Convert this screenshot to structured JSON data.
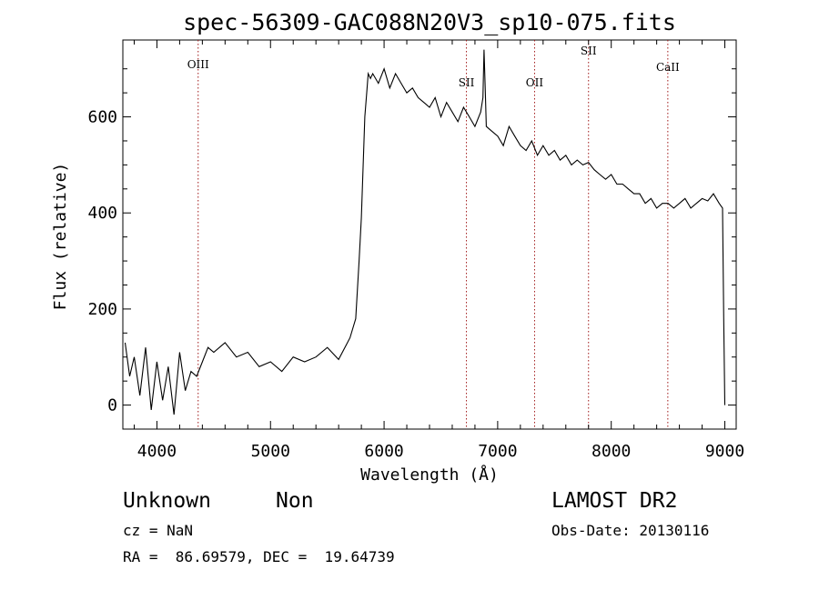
{
  "chart_data": {
    "type": "line",
    "title": "spec-56309-GAC088N20V3_sp10-075.fits",
    "xlabel": "Wavelength (Å)",
    "ylabel": "Flux (relative)",
    "xlim": [
      3700,
      9100
    ],
    "ylim": [
      -50,
      760
    ],
    "xticks": [
      4000,
      5000,
      6000,
      7000,
      8000,
      9000
    ],
    "yticks": [
      0,
      200,
      400,
      600
    ],
    "grid": false,
    "series": [
      {
        "x": [
          3720,
          3760,
          3800,
          3850,
          3900,
          3950,
          4000,
          4050,
          4100,
          4150,
          4200,
          4250,
          4300,
          4350,
          4400,
          4450,
          4500,
          4600,
          4700,
          4800,
          4900,
          5000,
          5100,
          5200,
          5300,
          5400,
          5500,
          5600,
          5700,
          5750,
          5780,
          5800,
          5830,
          5850,
          5860,
          5880,
          5900,
          5950,
          6000,
          6050,
          6100,
          6150,
          6200,
          6250,
          6300,
          6350,
          6400,
          6450,
          6500,
          6550,
          6600,
          6650,
          6700,
          6750,
          6800,
          6850,
          6870,
          6880,
          6890,
          6900,
          6950,
          7000,
          7050,
          7100,
          7150,
          7200,
          7250,
          7300,
          7350,
          7400,
          7450,
          7500,
          7550,
          7600,
          7650,
          7700,
          7750,
          7800,
          7850,
          7900,
          7950,
          8000,
          8050,
          8100,
          8150,
          8200,
          8250,
          8300,
          8350,
          8400,
          8450,
          8500,
          8550,
          8600,
          8650,
          8700,
          8750,
          8800,
          8850,
          8900,
          8950,
          8980,
          8990,
          9000
        ],
        "y": [
          130,
          60,
          100,
          20,
          120,
          -10,
          90,
          10,
          80,
          -20,
          110,
          30,
          70,
          60,
          90,
          120,
          110,
          130,
          100,
          110,
          80,
          90,
          70,
          100,
          90,
          100,
          120,
          95,
          140,
          180,
          300,
          390,
          600,
          660,
          690,
          680,
          690,
          670,
          700,
          660,
          690,
          670,
          650,
          660,
          640,
          630,
          620,
          640,
          600,
          630,
          610,
          590,
          620,
          600,
          580,
          610,
          640,
          740,
          660,
          580,
          570,
          560,
          540,
          580,
          560,
          540,
          530,
          550,
          520,
          540,
          520,
          530,
          510,
          520,
          500,
          510,
          500,
          505,
          490,
          480,
          470,
          480,
          460,
          460,
          450,
          440,
          440,
          420,
          430,
          410,
          420,
          420,
          410,
          420,
          430,
          410,
          420,
          430,
          425,
          440,
          420,
          410,
          180,
          0
        ]
      }
    ],
    "lines": [
      {
        "label": "OIII",
        "x": 4363
      },
      {
        "label": "SII",
        "x": 6725
      },
      {
        "label": "OII",
        "x": 7325
      },
      {
        "label": "SII",
        "x": 7800
      },
      {
        "label": "CaII",
        "x": 8498
      }
    ]
  },
  "footer": {
    "class_label": "Unknown",
    "subclass_label": "Non",
    "cz_text": "cz = NaN",
    "coords_text": "RA =  86.69579, DEC =  19.64739",
    "survey_label": "LAMOST DR2",
    "obs_date_text": "Obs-Date: 20130116"
  }
}
